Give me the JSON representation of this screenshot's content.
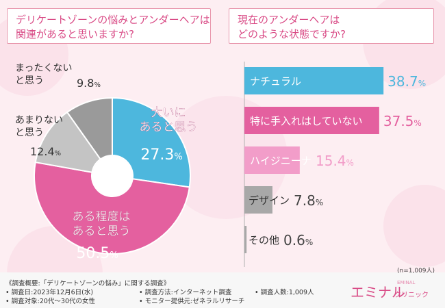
{
  "left_title": {
    "line1": "デリケートゾーンの悩みとアンダーヘアは",
    "line2": "関連があると思いますか?"
  },
  "right_title": {
    "line1": "現在のアンダーヘアは",
    "line2": "どのような状態ですか?"
  },
  "chart_data": [
    {
      "type": "pie",
      "title": "デリケートゾーンの悩みとアンダーヘアは関連があると思いますか?",
      "slices": [
        {
          "label_lines": [
            "大いに",
            "あると思う"
          ],
          "value": 27.3,
          "num": "27.3",
          "color": "#4db7dd"
        },
        {
          "label_lines": [
            "ある程度は",
            "あると思う"
          ],
          "value": 50.5,
          "num": "50.5",
          "color": "#e4609f"
        },
        {
          "label_lines": [
            "あまりない",
            "と思う"
          ],
          "value": 12.4,
          "num": "12.4",
          "color": "#c4c4c4"
        },
        {
          "label_lines": [
            "まったくない",
            "と思う"
          ],
          "value": 9.8,
          "num": "9.8",
          "color": "#9a9a9a"
        }
      ],
      "unit": "%"
    },
    {
      "type": "bar",
      "orientation": "horizontal",
      "title": "現在のアンダーヘアはどのような状態ですか?",
      "categories": [
        "ナチュラル",
        "特に手入れはしていない",
        "ハイジニーナ",
        "デザイン",
        "その他"
      ],
      "values": [
        38.7,
        37.5,
        15.4,
        7.8,
        0.6
      ],
      "nums": [
        "38.7",
        "37.5",
        "15.4",
        "7.8",
        "0.6"
      ],
      "colors": [
        "#4db7dd",
        "#e4609f",
        "#f29dc9",
        "#a8a8a8",
        "#a8a8a8"
      ],
      "unit": "%",
      "xlim": [
        0,
        40
      ]
    }
  ],
  "sample_note": "(n=1,009人)",
  "footer": {
    "heading": "《調査概要:「デリケートゾーンの悩み」に関する調査》",
    "date": "• 調査日:2023年12月6日(水)",
    "method": "• 調査方法:インターネット調査",
    "count": "• 調査人数:1,009人",
    "target": "• 調査対象:20代〜30代の女性",
    "monitor": "• モニター提供元:ゼネラルリサーチ"
  },
  "logo": {
    "main": "エミナル",
    "sub": "クリニック",
    "tag": "EMINAL"
  },
  "colors": {
    "accent": "#d94b86"
  }
}
